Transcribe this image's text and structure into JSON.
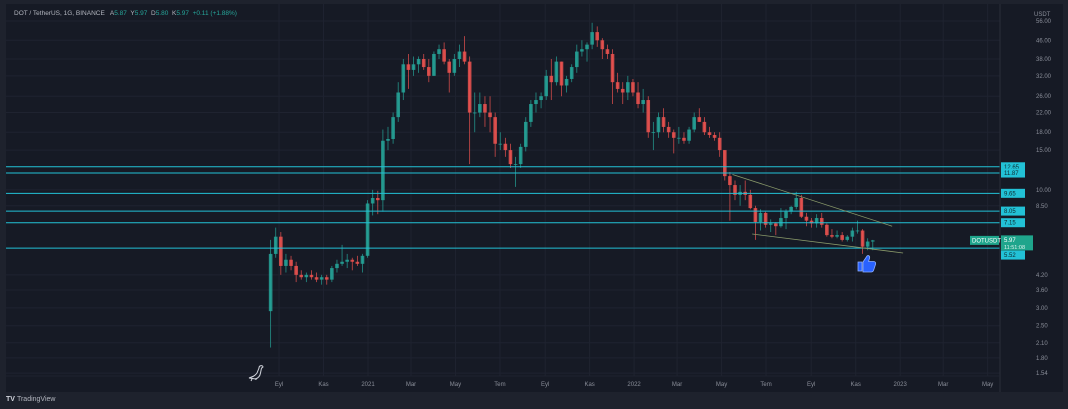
{
  "header": {
    "symbol": "DOT / TetherUS, 1G, BINANCE",
    "open_label": "A",
    "open": "5.87",
    "high_label": "Y",
    "high": "5.97",
    "low_label": "D",
    "low": "5.80",
    "close_label": "K",
    "close": "5.97",
    "change": "+0.11 (+1.88%)"
  },
  "footer": {
    "brand": "TradingView",
    "brand_icon": "tradingview-logo-icon"
  },
  "colors": {
    "up": "#26a69a",
    "down": "#ef5350",
    "level_line": "#22c1d6",
    "trendline": "#8a9a6a",
    "price_tag": "#1fa58c",
    "background": "#161a25"
  },
  "icons": {
    "bottom_left": "dinosaur-icon",
    "annotation": "thumbs-up-icon"
  },
  "chart_data": {
    "type": "candlestick",
    "symbol": "DOTUSDT",
    "unit": "USDT",
    "y_scale": "log",
    "ylim": [
      1.5,
      60
    ],
    "grid": true,
    "y_ticks": [
      "56.00",
      "46.00",
      "38.00",
      "32.00",
      "26.00",
      "22.00",
      "18.00",
      "15.00",
      "10.00",
      "8.50",
      "4.20",
      "3.60",
      "3.00",
      "2.50",
      "2.10",
      "1.80",
      "1.54"
    ],
    "x_ticks": [
      {
        "label": "Eyl",
        "date": "2020-09-01"
      },
      {
        "label": "Kas",
        "date": "2020-11-01"
      },
      {
        "label": "2021",
        "date": "2021-01-01"
      },
      {
        "label": "Mar",
        "date": "2021-03-01"
      },
      {
        "label": "May",
        "date": "2021-05-01"
      },
      {
        "label": "Tem",
        "date": "2021-07-01"
      },
      {
        "label": "Eyl",
        "date": "2021-09-01"
      },
      {
        "label": "Kas",
        "date": "2021-11-01"
      },
      {
        "label": "2022",
        "date": "2022-01-01"
      },
      {
        "label": "Mar",
        "date": "2022-03-01"
      },
      {
        "label": "May",
        "date": "2022-05-01"
      },
      {
        "label": "Tem",
        "date": "2022-07-01"
      },
      {
        "label": "Eyl",
        "date": "2022-09-01"
      },
      {
        "label": "Kas",
        "date": "2022-11-01"
      },
      {
        "label": "2023",
        "date": "2023-01-01"
      },
      {
        "label": "Mar",
        "date": "2023-03-01"
      },
      {
        "label": "May",
        "date": "2023-05-01"
      }
    ],
    "horizontal_levels": [
      "12.65",
      "11.87",
      "9.65",
      "8.05",
      "7.15",
      "5.52"
    ],
    "current_price": {
      "symbol": "DOTUSDT",
      "price": "5.97",
      "countdown": "11:51:08"
    },
    "trendlines": [
      {
        "from": [
          "2022-05-16",
          11.7
        ],
        "to": [
          "2022-12-21",
          6.9
        ]
      },
      {
        "from": [
          "2022-06-12",
          6.37
        ],
        "to": [
          "2023-01-05",
          5.25
        ]
      }
    ],
    "columns": [
      "week",
      "open",
      "high",
      "low",
      "close"
    ],
    "candles": [
      [
        "2020-08-17",
        2.9,
        6.0,
        2.0,
        5.2
      ],
      [
        "2020-08-24",
        5.2,
        6.8,
        5.0,
        6.2
      ],
      [
        "2020-08-31",
        6.2,
        6.5,
        4.2,
        4.6
      ],
      [
        "2020-09-07",
        4.6,
        5.2,
        4.3,
        4.9
      ],
      [
        "2020-09-14",
        4.9,
        5.1,
        4.4,
        4.6
      ],
      [
        "2020-09-21",
        4.6,
        4.8,
        3.9,
        4.2
      ],
      [
        "2020-09-28",
        4.2,
        4.4,
        4.0,
        4.1
      ],
      [
        "2020-10-05",
        4.1,
        4.3,
        3.9,
        4.2
      ],
      [
        "2020-10-12",
        4.2,
        4.4,
        4.0,
        4.1
      ],
      [
        "2020-10-19",
        4.1,
        4.3,
        3.9,
        4.0
      ],
      [
        "2020-10-26",
        4.0,
        4.2,
        3.8,
        4.1
      ],
      [
        "2020-11-02",
        4.1,
        4.2,
        3.8,
        4.0
      ],
      [
        "2020-11-09",
        4.0,
        4.6,
        3.9,
        4.5
      ],
      [
        "2020-11-16",
        4.5,
        4.9,
        4.3,
        4.7
      ],
      [
        "2020-11-23",
        4.7,
        5.7,
        4.6,
        4.8
      ],
      [
        "2020-11-30",
        4.8,
        5.2,
        4.5,
        4.9
      ],
      [
        "2020-12-07",
        4.9,
        5.0,
        4.4,
        4.8
      ],
      [
        "2020-12-14",
        4.8,
        5.1,
        4.6,
        4.7
      ],
      [
        "2020-12-21",
        4.7,
        5.2,
        4.3,
        5.1
      ],
      [
        "2020-12-28",
        5.1,
        9.0,
        5.0,
        8.7
      ],
      [
        "2021-01-04",
        8.7,
        10.0,
        7.7,
        9.2
      ],
      [
        "2021-01-11",
        9.2,
        9.9,
        7.8,
        9.0
      ],
      [
        "2021-01-18",
        9.0,
        18.5,
        8.0,
        16.5
      ],
      [
        "2021-01-25",
        16.5,
        19,
        15,
        16.8
      ],
      [
        "2021-02-01",
        16.8,
        22,
        16,
        21
      ],
      [
        "2021-02-08",
        21,
        30,
        20,
        27
      ],
      [
        "2021-02-15",
        27,
        38,
        25,
        36
      ],
      [
        "2021-02-22",
        36,
        40,
        28,
        34
      ],
      [
        "2021-03-01",
        34,
        39,
        32,
        36
      ],
      [
        "2021-03-08",
        36,
        39,
        33,
        38
      ],
      [
        "2021-03-15",
        38,
        40,
        34,
        35
      ],
      [
        "2021-03-22",
        35,
        38,
        30,
        32
      ],
      [
        "2021-03-29",
        32,
        41,
        32,
        40
      ],
      [
        "2021-04-05",
        40,
        44,
        38,
        42
      ],
      [
        "2021-04-12",
        42,
        45,
        36,
        37
      ],
      [
        "2021-04-19",
        37,
        38,
        27,
        33
      ],
      [
        "2021-04-26",
        33,
        40,
        32,
        38
      ],
      [
        "2021-05-03",
        38,
        44,
        35,
        41
      ],
      [
        "2021-05-10",
        41,
        48,
        36,
        37
      ],
      [
        "2021-05-17",
        37,
        39,
        13,
        22
      ],
      [
        "2021-05-24",
        22,
        27,
        18,
        22
      ],
      [
        "2021-05-31",
        22,
        27,
        21,
        24
      ],
      [
        "2021-06-07",
        24,
        26,
        19,
        22
      ],
      [
        "2021-06-14",
        22,
        26,
        18,
        21
      ],
      [
        "2021-06-21",
        21,
        22,
        14,
        16
      ],
      [
        "2021-06-28",
        16,
        18,
        15,
        16
      ],
      [
        "2021-07-05",
        16,
        17,
        14,
        15
      ],
      [
        "2021-07-12",
        15,
        16,
        12.5,
        13
      ],
      [
        "2021-07-19",
        13,
        14,
        10.3,
        13
      ],
      [
        "2021-07-26",
        13,
        16,
        12.5,
        15.5
      ],
      [
        "2021-08-02",
        15.5,
        21,
        14.8,
        20
      ],
      [
        "2021-08-09",
        20,
        25,
        19,
        24
      ],
      [
        "2021-08-16",
        24,
        27,
        22,
        25
      ],
      [
        "2021-08-23",
        25,
        27,
        23,
        26
      ],
      [
        "2021-08-30",
        26,
        34,
        25,
        32
      ],
      [
        "2021-09-06",
        32,
        38,
        25,
        30
      ],
      [
        "2021-09-13",
        30,
        39,
        29,
        37
      ],
      [
        "2021-09-20",
        37,
        37,
        26,
        29
      ],
      [
        "2021-09-27",
        29,
        32,
        27,
        31
      ],
      [
        "2021-10-04",
        31,
        36,
        30,
        35
      ],
      [
        "2021-10-11",
        35,
        44,
        33,
        41
      ],
      [
        "2021-10-18",
        41,
        46,
        39,
        42
      ],
      [
        "2021-10-25",
        42,
        45,
        37,
        44
      ],
      [
        "2021-11-01",
        44,
        55,
        42,
        50
      ],
      [
        "2021-11-08",
        50,
        53,
        43,
        46
      ],
      [
        "2021-11-15",
        46,
        47,
        38,
        42
      ],
      [
        "2021-11-22",
        42,
        44,
        38,
        40
      ],
      [
        "2021-11-29",
        40,
        42,
        24,
        30
      ],
      [
        "2021-12-06",
        30,
        33,
        27,
        28
      ],
      [
        "2021-12-13",
        28,
        30,
        24,
        27
      ],
      [
        "2021-12-20",
        27,
        32,
        25,
        30
      ],
      [
        "2021-12-27",
        30,
        31,
        26,
        27
      ],
      [
        "2022-01-03",
        27,
        30,
        23,
        24
      ],
      [
        "2022-01-10",
        24,
        28,
        22,
        25
      ],
      [
        "2022-01-17",
        25,
        26,
        17,
        18
      ],
      [
        "2022-01-24",
        18,
        20,
        15,
        18
      ],
      [
        "2022-01-31",
        18,
        22,
        17,
        21
      ],
      [
        "2022-02-07",
        21,
        23,
        18,
        19
      ],
      [
        "2022-02-14",
        19,
        20,
        17,
        18
      ],
      [
        "2022-02-21",
        18,
        18.5,
        14.5,
        17
      ],
      [
        "2022-02-28",
        17,
        19,
        16,
        17
      ],
      [
        "2022-03-07",
        17,
        18,
        16,
        16.5
      ],
      [
        "2022-03-14",
        16.5,
        19,
        16,
        18.5
      ],
      [
        "2022-03-21",
        18.5,
        22,
        18,
        21
      ],
      [
        "2022-03-28",
        21,
        23,
        20,
        20
      ],
      [
        "2022-04-04",
        20,
        21,
        17.5,
        18
      ],
      [
        "2022-04-11",
        18,
        19,
        17,
        17.5
      ],
      [
        "2022-04-18",
        17.5,
        18,
        16.5,
        17
      ],
      [
        "2022-04-25",
        17,
        18,
        14,
        15
      ],
      [
        "2022-05-02",
        15,
        15,
        11,
        11.5
      ],
      [
        "2022-05-09",
        11.5,
        12,
        7.3,
        10.5
      ],
      [
        "2022-05-16",
        10.5,
        11,
        9.0,
        9.5
      ],
      [
        "2022-05-23",
        9.5,
        10.5,
        8.5,
        9.8
      ],
      [
        "2022-05-30",
        9.8,
        11,
        9.0,
        9.5
      ],
      [
        "2022-06-06",
        9.5,
        10,
        8.2,
        8.3
      ],
      [
        "2022-06-13",
        8.3,
        8.5,
        6.0,
        7.2
      ],
      [
        "2022-06-20",
        7.2,
        8.2,
        6.6,
        7.9
      ],
      [
        "2022-06-27",
        7.9,
        8.0,
        6.8,
        7.0
      ],
      [
        "2022-07-04",
        7.0,
        7.4,
        6.5,
        7.1
      ],
      [
        "2022-07-11",
        7.1,
        7.2,
        6.3,
        6.9
      ],
      [
        "2022-07-18",
        6.9,
        8.3,
        6.8,
        7.5
      ],
      [
        "2022-07-25",
        7.5,
        8.2,
        6.7,
        8.0
      ],
      [
        "2022-08-01",
        8.0,
        8.5,
        7.8,
        8.4
      ],
      [
        "2022-08-08",
        8.4,
        9.8,
        8.2,
        9.2
      ],
      [
        "2022-08-15",
        9.2,
        9.5,
        7.5,
        7.6
      ],
      [
        "2022-08-22",
        7.6,
        7.9,
        6.9,
        7.3
      ],
      [
        "2022-08-29",
        7.3,
        7.5,
        6.8,
        7.1
      ],
      [
        "2022-09-05",
        7.1,
        7.8,
        6.8,
        7.5
      ],
      [
        "2022-09-12",
        7.5,
        7.9,
        6.8,
        7.0
      ],
      [
        "2022-09-19",
        7.0,
        7.1,
        6.2,
        6.3
      ],
      [
        "2022-09-26",
        6.3,
        6.7,
        6.1,
        6.2
      ],
      [
        "2022-10-03",
        6.2,
        6.6,
        6.1,
        6.3
      ],
      [
        "2022-10-10",
        6.3,
        6.5,
        5.9,
        6.0
      ],
      [
        "2022-10-17",
        6.0,
        6.3,
        5.9,
        6.2
      ],
      [
        "2022-10-24",
        6.2,
        6.8,
        5.9,
        6.6
      ],
      [
        "2022-10-31",
        6.6,
        7.3,
        6.4,
        6.6
      ],
      [
        "2022-11-07",
        6.6,
        6.7,
        5.2,
        5.6
      ],
      [
        "2022-11-14",
        5.6,
        6.1,
        5.4,
        5.9
      ],
      [
        "2022-11-21",
        5.9,
        6.0,
        5.4,
        5.97
      ]
    ]
  }
}
